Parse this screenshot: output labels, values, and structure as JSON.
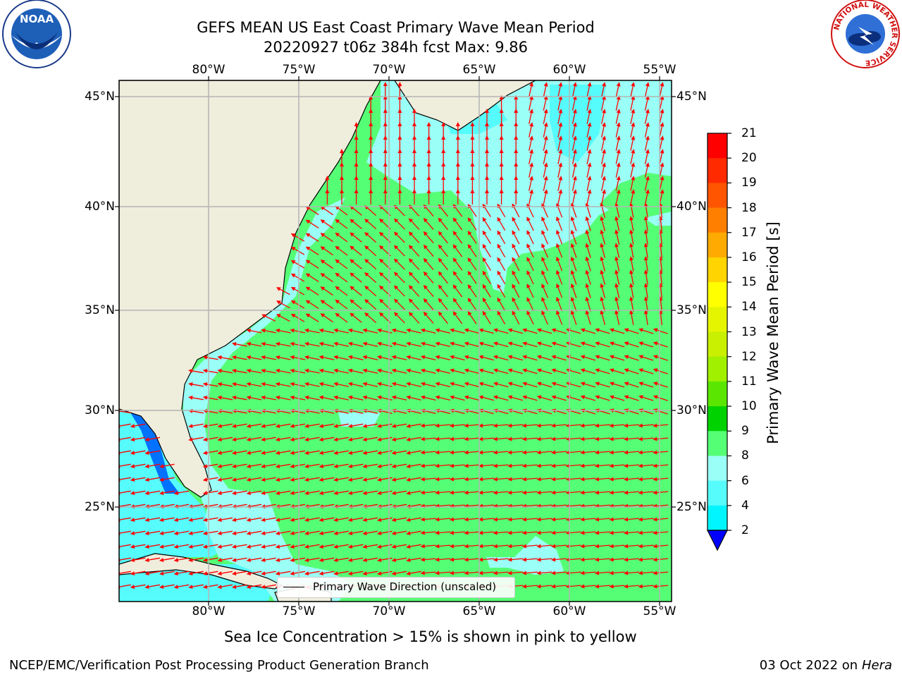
{
  "title_line1": "GEFS MEAN US East Coast Primary Wave Mean Period",
  "title_line2": "20220927 t06z 384h fcst   Max: 9.86",
  "lon_labels": [
    "80°W",
    "75°W",
    "70°W",
    "65°W",
    "60°W",
    "55°W"
  ],
  "lat_labels": [
    "45°N",
    "40°N",
    "35°N",
    "30°N",
    "25°N"
  ],
  "colorbar": {
    "label": "Primary Wave Mean Period [s]",
    "ticks": [
      "21",
      "20",
      "19",
      "18",
      "17",
      "16",
      "15",
      "14",
      "13",
      "12",
      "11",
      "10",
      "9",
      "8",
      "6",
      "4",
      "2"
    ],
    "colors": [
      "#ff0000",
      "#ff2a00",
      "#ff5500",
      "#ff7f00",
      "#ffaa00",
      "#ffd400",
      "#ffff00",
      "#e5f500",
      "#c8f000",
      "#a0f000",
      "#5ae600",
      "#00d200",
      "#55ff75",
      "#9afff6",
      "#55fcfb",
      "#00f5ff",
      "#00ccff",
      "#0072ff",
      "#0000ff"
    ]
  },
  "legend": {
    "label": "Primary Wave Direction (unscaled)"
  },
  "subtitle": "Sea Ice Concentration > 15% is shown in pink to yellow",
  "footer_left": "NCEP/EMC/Verification Post Processing Product Generation Branch",
  "footer_right_date": "03 Oct 2022 on ",
  "footer_right_machine": "Hera",
  "logos": {
    "left": "NOAA",
    "right_ring": "NATIONAL WEATHER SERVICE"
  },
  "colors": {
    "land": "#efeddc",
    "water_green": "#55ff75",
    "water_light": "#9afff6",
    "water_cyan": "#55fcfb",
    "water_blue": "#0072ff",
    "arrow": "#ff0000",
    "grid": "#b4b4b4"
  }
}
